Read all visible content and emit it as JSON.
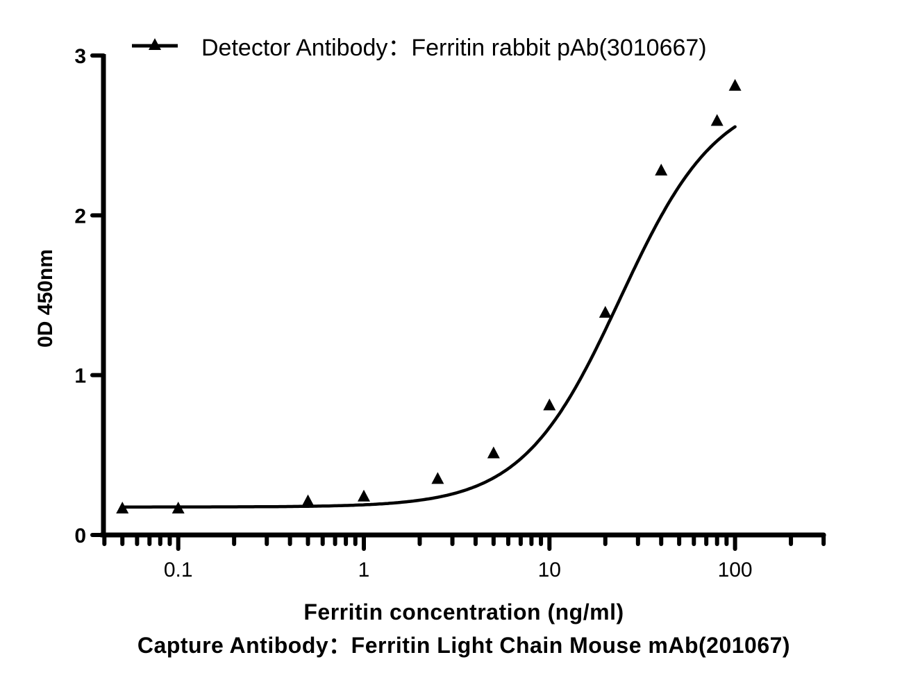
{
  "chart_data": {
    "type": "line",
    "title": "",
    "xlabel": "Ferritin concentration (ng/ml)",
    "subtitle_bottom": "Capture Antibody：Ferritin Light Chain Mouse mAb(201067)",
    "ylabel": "0D 450nm",
    "xscale": "log",
    "xlim": [
      0.04,
      300
    ],
    "ylim": [
      0,
      3
    ],
    "x_ticks": [
      0.1,
      1,
      10,
      100
    ],
    "x_tick_labels": [
      "0.1",
      "1",
      "10",
      "100"
    ],
    "y_ticks": [
      0,
      1,
      2,
      3
    ],
    "y_tick_labels": [
      "0",
      "1",
      "2",
      "3"
    ],
    "grid": false,
    "legend_position": "top",
    "series": [
      {
        "name": "Detector Antibody：Ferritin rabbit pAb(3010667)",
        "marker": "triangle",
        "color": "#000000",
        "x": [
          0.05,
          0.1,
          0.5,
          1,
          2.5,
          5,
          10,
          20,
          40,
          80,
          100
        ],
        "values": [
          0.165,
          0.165,
          0.21,
          0.24,
          0.35,
          0.51,
          0.81,
          1.39,
          2.28,
          2.59,
          2.81
        ],
        "fit": "four-parameter logistic",
        "fit_params": {
          "bottom": 0.175,
          "top": 2.78,
          "ec50": 24,
          "hill": 1.65
        }
      }
    ]
  },
  "legend": {
    "label": "Detector Antibody：Ferritin rabbit pAb(3010667)"
  },
  "axes": {
    "xlabel": "Ferritin concentration (ng/ml)",
    "caption": "Capture Antibody：Ferritin Light Chain Mouse mAb(201067)",
    "ylabel": "0D 450nm"
  }
}
